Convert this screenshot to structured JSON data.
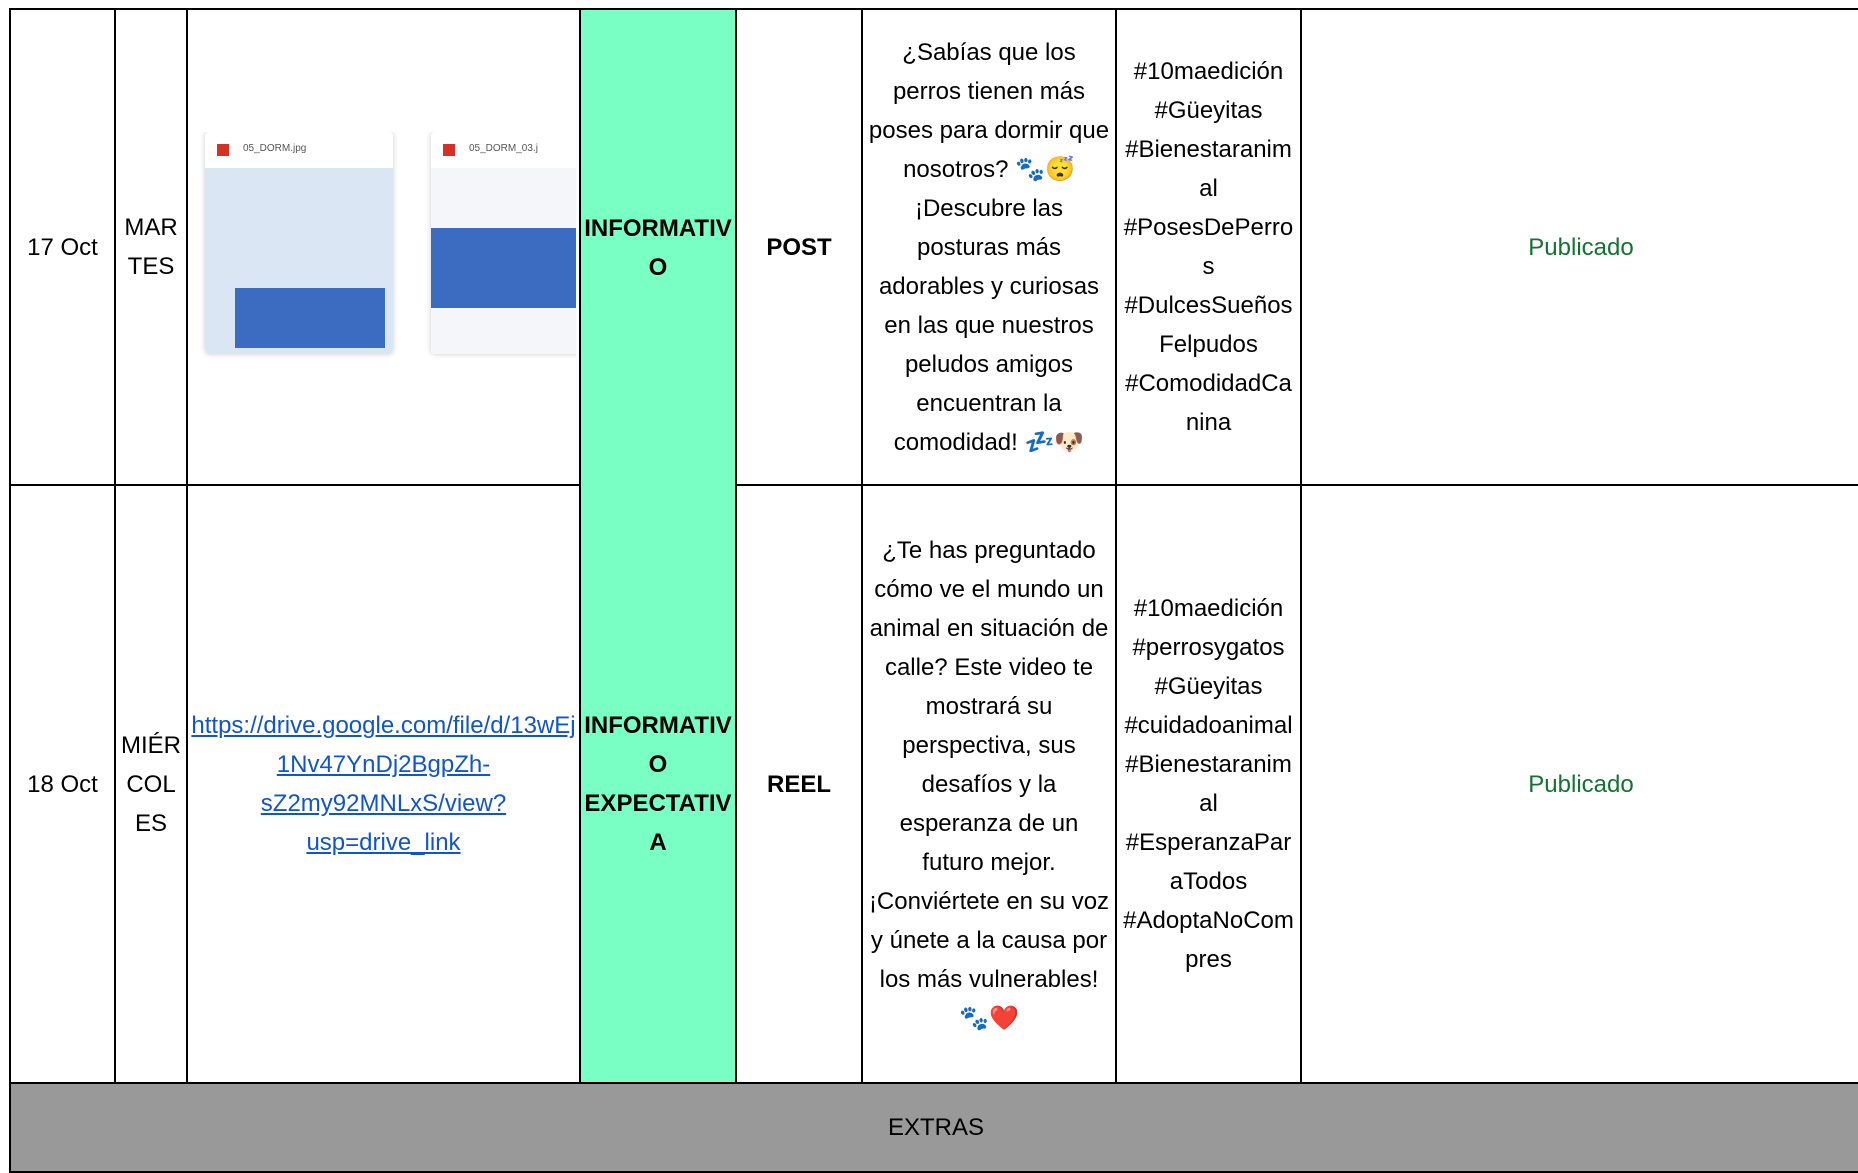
{
  "rows": [
    {
      "date": "17 Oct",
      "day": "MARTES",
      "media": {
        "files": [
          "05_DORM.jpg",
          "05_DORM_03.j"
        ]
      },
      "category": "INFORMATIVO",
      "format": "POST",
      "copy": "¿Sabías que los perros tienen más poses para dormir que nosotros? 🐾😴 ¡Descubre las posturas más adorables y curiosas en las que nuestros peludos amigos encuentran la comodidad! 💤🐶",
      "hashtags": "#10maedición #Güeyitas #Bienestaranimal #PosesDePerros #DulcesSueñosFelpudos #ComodidadCanina",
      "status": "Publicado"
    },
    {
      "date": "18 Oct",
      "day": "MIÉRCOLES",
      "media": {
        "link": "https://drive.google.com/file/d/13wEj1Nv47YnDj2BgpZh-sZ2my92MNLxS/view?usp=drive_link"
      },
      "category": "INFORMATIVO EXPECTATIVA",
      "format": "REEL",
      "copy": "¿Te has preguntado cómo ve el mundo un animal en situación de calle? Este video te mostrará su perspectiva, sus desafíos y la esperanza de un futuro mejor. ¡Conviértete en su voz y únete a la causa por los más vulnerables! 🐾❤️",
      "hashtags": "#10maedición #perrosygatos #Güeyitas #cuidadoanimal #Bienestaranimal #EsperanzaParaTodos #AdoptaNoCompres",
      "status": "Publicado"
    }
  ],
  "extras": "EXTRAS"
}
